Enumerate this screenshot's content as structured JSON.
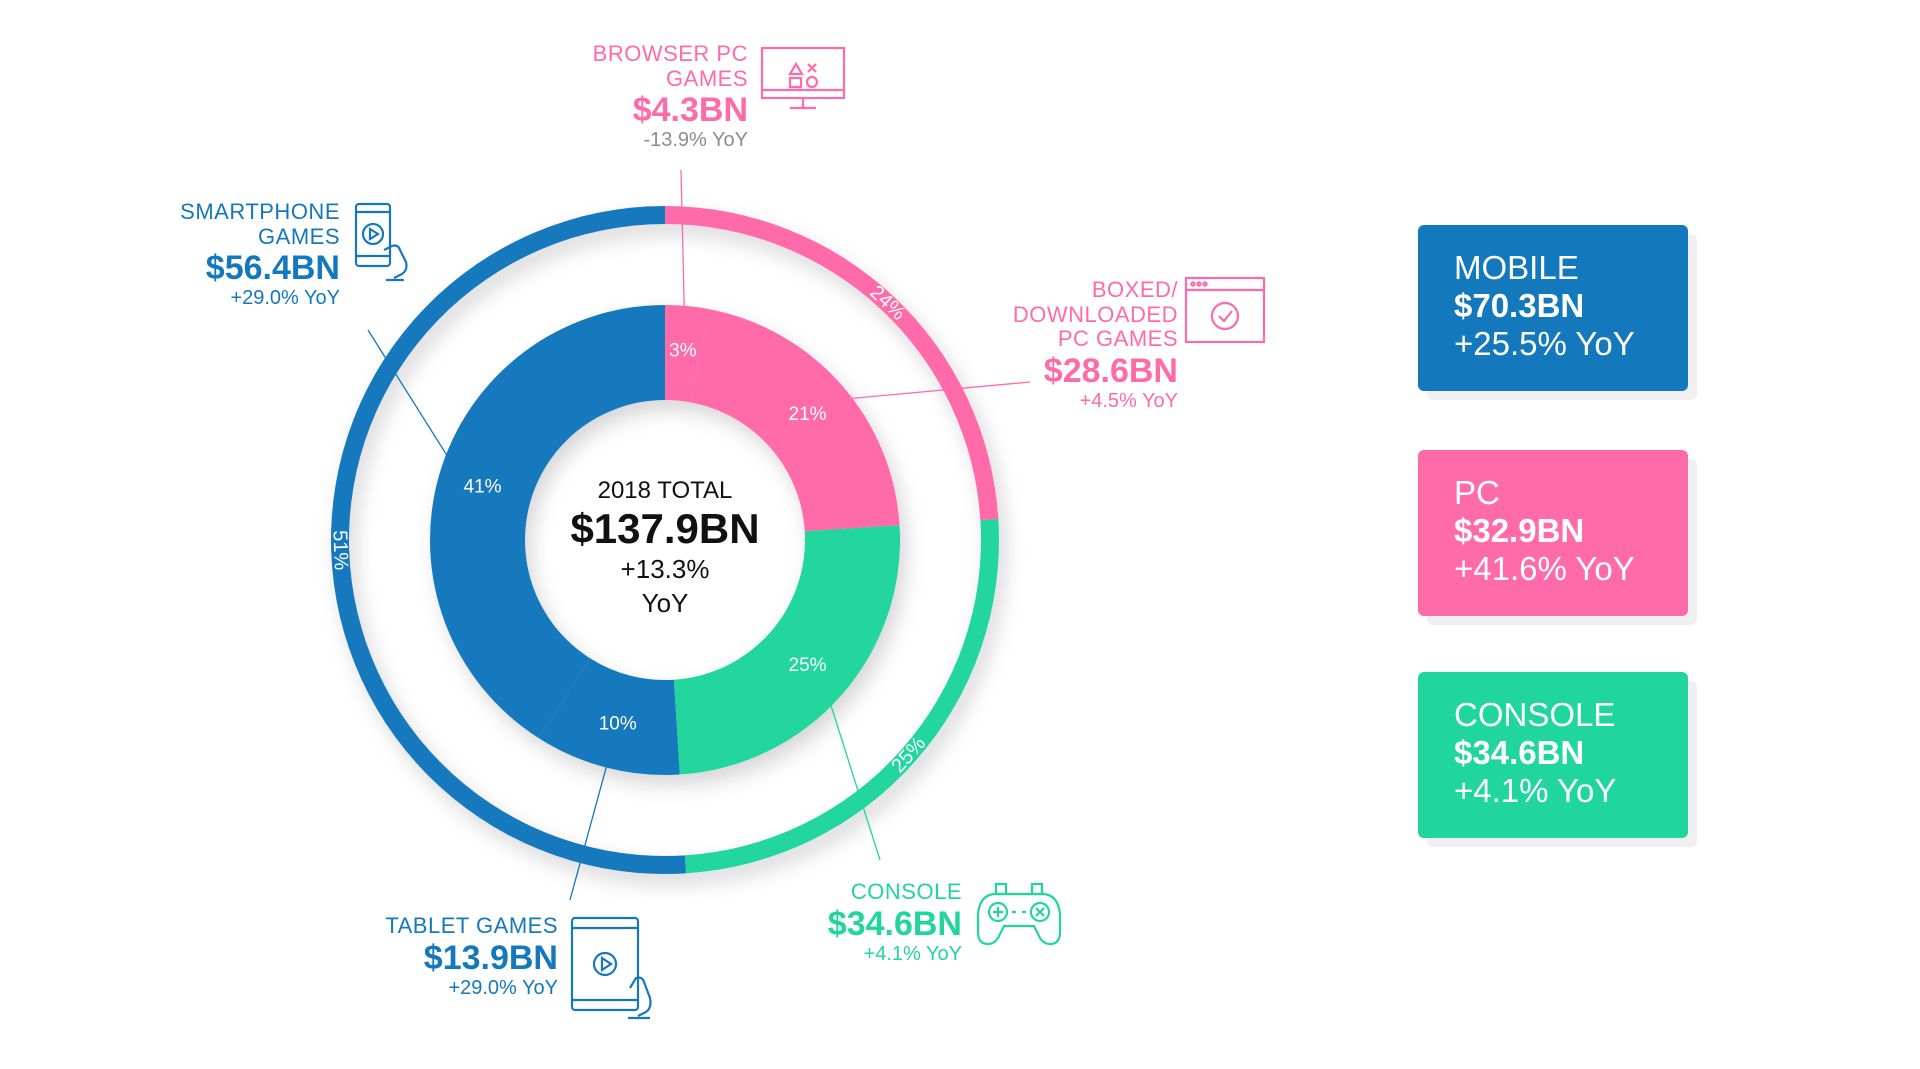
{
  "colors": {
    "mobile": "#1478bd",
    "pc": "#ff6aa8",
    "console": "#21d69d",
    "text": "#111111",
    "faint": "#8c8c8c"
  },
  "chart_data": {
    "type": "donut",
    "title": "2018 TOTAL",
    "total": {
      "label": "2018 TOTAL",
      "value": "$137.9BN",
      "yoy_line1": "+13.3%",
      "yoy_line2": "YoY"
    },
    "inner_ring": [
      {
        "segment": "Browser PC Games",
        "share": 3,
        "label": "3%",
        "value_bn": 4.3,
        "color_key": "pc"
      },
      {
        "segment": "Boxed/Downloaded PC Games",
        "share": 21,
        "label": "21%",
        "value_bn": 28.6,
        "color_key": "pc"
      },
      {
        "segment": "Console",
        "share": 25,
        "label": "25%",
        "value_bn": 34.6,
        "color_key": "console"
      },
      {
        "segment": "Tablet Games",
        "share": 10,
        "label": "10%",
        "value_bn": 13.9,
        "color_key": "mobile"
      },
      {
        "segment": "Smartphone Games",
        "share": 41,
        "label": "41%",
        "value_bn": 56.4,
        "color_key": "mobile"
      }
    ],
    "outer_ring": [
      {
        "segment": "PC",
        "share": 24,
        "label": "24%",
        "value_bn": 32.9,
        "color_key": "pc"
      },
      {
        "segment": "Console",
        "share": 25,
        "label": "25%",
        "value_bn": 34.6,
        "color_key": "console"
      },
      {
        "segment": "Mobile",
        "share": 51,
        "label": "51%",
        "value_bn": 70.3,
        "color_key": "mobile"
      }
    ]
  },
  "callouts": {
    "browser": {
      "name_line1": "BROWSER PC",
      "name_line2": "GAMES",
      "value": "$4.3BN",
      "yoy": "-13.9% YoY",
      "icon": "monitor-icon"
    },
    "boxed": {
      "name_line1": "BOXED/",
      "name_line2": "DOWNLOADED",
      "name_line3": "PC GAMES",
      "value": "$28.6BN",
      "yoy": "+4.5% YoY",
      "icon": "browser-window-check-icon"
    },
    "smartphone": {
      "name_line1": "SMARTPHONE",
      "name_line2": "GAMES",
      "value": "$56.4BN",
      "yoy": "+29.0% YoY",
      "icon": "smartphone-icon"
    },
    "tablet": {
      "name_line1": "TABLET GAMES",
      "value": "$13.9BN",
      "yoy": "+29.0% YoY",
      "icon": "tablet-icon"
    },
    "console": {
      "name_line1": "CONSOLE",
      "value": "$34.6BN",
      "yoy": "+4.1% YoY",
      "icon": "gamepad-icon"
    }
  },
  "summary_cards": [
    {
      "name": "MOBILE",
      "value": "$70.3BN",
      "yoy": "+25.5% YoY",
      "color_key": "mobile"
    },
    {
      "name": "PC",
      "value": "$32.9BN",
      "yoy": "+41.6% YoY",
      "color_key": "pc"
    },
    {
      "name": "CONSOLE",
      "value": "$34.6BN",
      "yoy": "+4.1% YoY",
      "color_key": "console"
    }
  ]
}
